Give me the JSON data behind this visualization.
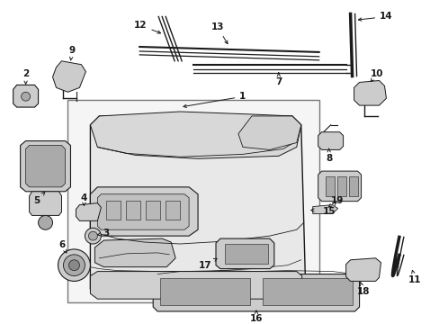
{
  "bg": "#ffffff",
  "lc": "#1a1a1a",
  "fig_w": 4.89,
  "fig_h": 3.6,
  "dpi": 100,
  "gray1": "#cccccc",
  "gray2": "#aaaaaa",
  "gray3": "#888888",
  "gray_fill": "#e8e8e8",
  "gray_dark": "#555555"
}
